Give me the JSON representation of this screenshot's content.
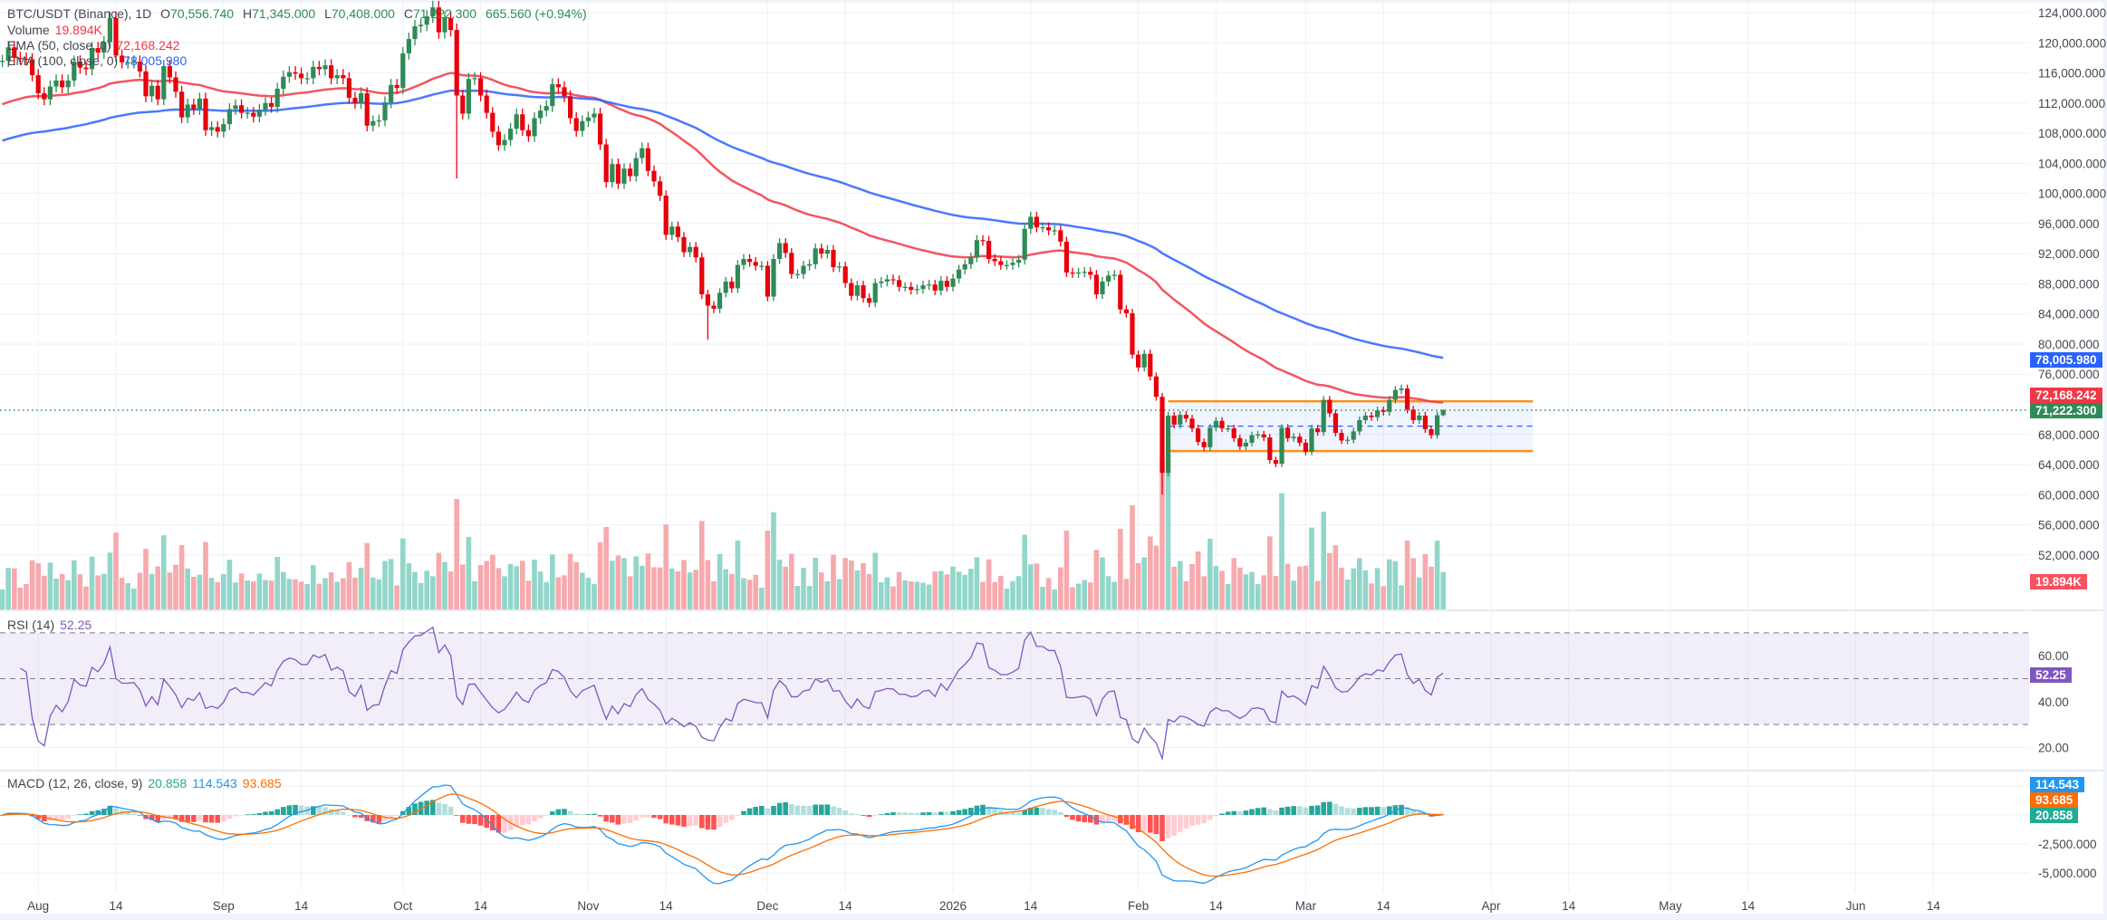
{
  "header": {
    "symbol": "BTC/USDT (Binance), 1D",
    "open_label": "O",
    "open": "70,556.740",
    "high_label": "H",
    "high": "71,345.000",
    "low_label": "L",
    "low": "70,408.000",
    "close_label": "C",
    "close": "71,222.300",
    "change": "665.560 (+0.94%)",
    "volume_label": "Volume",
    "volume": "19.894K",
    "ema50_label": "EMA (50, close, 0)",
    "ema50": "72,168.242",
    "ema100_label": "EMA (100, close, 0)",
    "ema100": "78,005.980"
  },
  "rsi": {
    "label": "RSI (14)",
    "value": "52.25",
    "ticks": [
      "60.00",
      "40.00",
      "20.00"
    ]
  },
  "macd": {
    "label": "MACD (12, 26, close, 9)",
    "histogram": "20.858",
    "macd": "114.543",
    "signal": "93.685",
    "ticks": [
      "-2,500.000",
      "-5,000.000"
    ]
  },
  "price_tags": {
    "ema100": "78,005.980",
    "ema50": "72,168.242",
    "last": "71,222.300",
    "volume": "19.894K"
  },
  "price_ticks": [
    "124,000.000",
    "120,000.000",
    "116,000.000",
    "112,000.000",
    "108,000.000",
    "104,000.000",
    "100,000.000",
    "96,000.000",
    "92,000.000",
    "88,000.000",
    "84,000.000",
    "80,000.000",
    "76,000.000",
    "68,000.000",
    "64,000.000",
    "60,000.000",
    "56,000.000",
    "52,000.000"
  ],
  "time_ticks": [
    {
      "label": "Aug",
      "date": "2025-08-01"
    },
    {
      "label": "14",
      "date": "2025-08-14"
    },
    {
      "label": "Sep",
      "date": "2025-09-01"
    },
    {
      "label": "14",
      "date": "2025-09-14"
    },
    {
      "label": "Oct",
      "date": "2025-10-01"
    },
    {
      "label": "14",
      "date": "2025-10-14"
    },
    {
      "label": "Nov",
      "date": "2025-11-01"
    },
    {
      "label": "14",
      "date": "2025-11-14"
    },
    {
      "label": "Dec",
      "date": "2025-12-01"
    },
    {
      "label": "14",
      "date": "2025-12-14"
    },
    {
      "label": "2026",
      "date": "2026-01-01"
    },
    {
      "label": "14",
      "date": "2026-01-14"
    },
    {
      "label": "Feb",
      "date": "2026-02-01"
    },
    {
      "label": "14",
      "date": "2026-02-14"
    },
    {
      "label": "Mar",
      "date": "2026-03-01"
    },
    {
      "label": "14",
      "date": "2026-03-14"
    },
    {
      "label": "Apr",
      "date": "2026-04-01"
    },
    {
      "label": "14",
      "date": "2026-04-14"
    },
    {
      "label": "May",
      "date": "2026-05-01"
    },
    {
      "label": "14",
      "date": "2026-05-14"
    },
    {
      "label": "Jun",
      "date": "2026-06-01"
    },
    {
      "label": "14",
      "date": "2026-06-14"
    }
  ],
  "colors": {
    "up": "#2f8a56",
    "down": "#e8000b",
    "vol_up": "#92d6ca",
    "vol_down": "#f7a9ae",
    "ema50": "#f23645",
    "ema100": "#2962ff",
    "rsi": "#7e57c2",
    "macd": "#2196f3",
    "signal": "#ff6d00",
    "range_box": "#f7931a",
    "last_price": "#2e8b57"
  },
  "chart_data": {
    "type": "candlestick",
    "interval": "1D",
    "first_date": "2025-07-26",
    "ylim": [
      48000,
      124000
    ],
    "closes": [
      117600,
      119400,
      118000,
      117900,
      117800,
      115700,
      113300,
      112500,
      114200,
      115000,
      114100,
      115000,
      117500,
      116700,
      116500,
      119300,
      118700,
      120100,
      123300,
      118300,
      117400,
      117400,
      117500,
      116200,
      112900,
      114300,
      112500,
      116900,
      115400,
      113500,
      110100,
      111800,
      111200,
      112600,
      108400,
      108800,
      108200,
      109200,
      111200,
      111700,
      110700,
      110700,
      110200,
      111100,
      112000,
      111500,
      113900,
      115500,
      116100,
      115900,
      115300,
      115300,
      116800,
      116500,
      117000,
      115300,
      115700,
      115300,
      112700,
      112000,
      113300,
      109000,
      109600,
      109700,
      112100,
      114400,
      114000,
      118600,
      120500,
      122200,
      122400,
      123500,
      124700,
      121400,
      123300,
      121700,
      113000,
      110600,
      115200,
      115300,
      113000,
      110700,
      108200,
      106400,
      107100,
      108600,
      110500,
      108400,
      107600,
      110000,
      111000,
      111600,
      114500,
      114100,
      112900,
      110000,
      108300,
      109600,
      110100,
      110600,
      106500,
      101500,
      103900,
      101300,
      103300,
      102300,
      104700,
      106000,
      103000,
      101600,
      99700,
      94500,
      95600,
      94200,
      92200,
      92900,
      91500,
      86600,
      85100,
      84700,
      86800,
      88300,
      87400,
      90500,
      91300,
      90900,
      90400,
      90400,
      86300,
      91300,
      93400,
      92100,
      89300,
      89300,
      90400,
      90600,
      92700,
      92000,
      92500,
      90200,
      90300,
      88100,
      86400,
      87800,
      86100,
      85500,
      88100,
      88300,
      88600,
      88500,
      87600,
      87600,
      87200,
      87300,
      87800,
      87900,
      87100,
      88400,
      87600,
      88700,
      89900,
      90600,
      91500,
      93800,
      93700,
      91300,
      91000,
      90500,
      90500,
      90800,
      91200,
      95300,
      96900,
      95500,
      95500,
      95100,
      95100,
      93600,
      89500,
      89400,
      89500,
      89600,
      89200,
      86600,
      88300,
      89100,
      89200,
      84600,
      84100,
      78600,
      76900,
      78700,
      75700,
      73000,
      62900,
      70500,
      69300,
      70600,
      70100,
      68800,
      67000,
      66300,
      68900,
      69800,
      68800,
      68800,
      67500,
      66400,
      66900,
      67900,
      68000,
      67600,
      64600,
      64100,
      68900,
      67500,
      67700,
      66900,
      65700,
      68800,
      68300,
      72600,
      70800,
      68200,
      67200,
      67300,
      68400,
      69900,
      70500,
      70300,
      71200,
      71000,
      72600,
      73900,
      74100,
      71300,
      69900,
      70500,
      68700,
      67900,
      70556.74,
      71222.3
    ],
    "last_candle": {
      "open": 70556.74,
      "high": 71345,
      "low": 70408,
      "close": 71222.3
    },
    "notable_lows": [
      {
        "date": "2025-10-10",
        "low": 102000
      },
      {
        "date": "2026-02-05",
        "low": 60000
      },
      {
        "date": "2025-11-21",
        "low": 80600
      }
    ],
    "ema_start": {
      "ema50": 111600,
      "ema100": 106800
    },
    "indicators": {
      "ema": [
        50,
        100
      ],
      "rsi_length": 14,
      "rsi_levels": [
        70,
        50,
        30
      ],
      "rsi_ylim": [
        10,
        80
      ],
      "macd": [
        12,
        26,
        9
      ],
      "macd_ylim": [
        -6000,
        4000
      ]
    },
    "range_box": {
      "from": "2026-02-06",
      "to": "2026-04-08",
      "top": 72400,
      "bottom": 65800,
      "mid": 69100
    },
    "last_price_line": 71222.3
  }
}
